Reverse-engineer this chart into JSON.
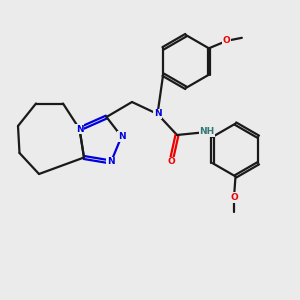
{
  "bg_color": "#ebebeb",
  "bond_color": "#1a1a1a",
  "N_color": "#0000dd",
  "O_color": "#ee0000",
  "H_color": "#337777",
  "line_width": 1.6,
  "figsize": [
    3.0,
    3.0
  ],
  "dpi": 100,
  "xlim": [
    0,
    10
  ],
  "ylim": [
    0,
    10
  ],
  "fontsize": 6.5
}
